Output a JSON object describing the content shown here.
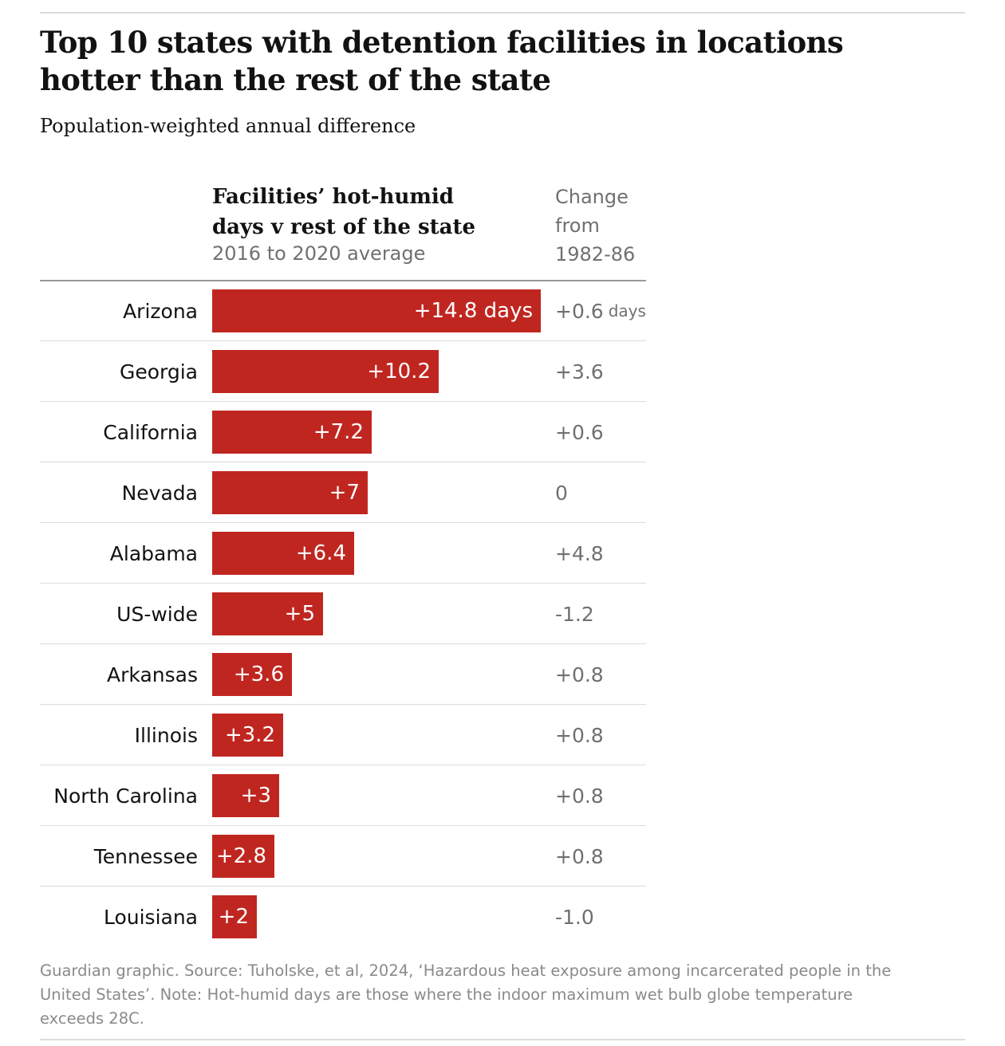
{
  "title": "Top 10 states with detention facilities in locations hotter than the rest of the state",
  "subtitle": "Population-weighted annual difference",
  "column_header": {
    "line1": "Facilities’ hot-humid",
    "line2": "days v rest of the state",
    "sub": "2016 to 2020 average"
  },
  "change_header": {
    "line1": "Change",
    "line2": "from",
    "line3": "1982-86"
  },
  "footer": {
    "line1": "Guardian graphic. Source: Tuholske, et al, 2024, ‘Hazardous heat exposure among incarcerated people in the",
    "line2": "United States’. Note: Hot-humid days are those where the indoor maximum wet bulb globe temperature",
    "line3": "exceeds 28C."
  },
  "colors": {
    "bar": "#c02620",
    "muted_text": "#707070"
  },
  "chart_data": {
    "type": "bar",
    "orientation": "horizontal",
    "title": "Top 10 states with detention facilities in locations hotter than the rest of the state",
    "subtitle": "Population-weighted annual difference",
    "value_label": "Facilities’ hot-humid days v rest of the state",
    "value_sublabel": "2016 to 2020 average",
    "unit": "days",
    "xlim": [
      0,
      14.8
    ],
    "rows": [
      {
        "category": "Arizona",
        "value": 14.8,
        "value_label": "+14.8 days",
        "change": "+0.6",
        "change_unit": "days"
      },
      {
        "category": "Georgia",
        "value": 10.2,
        "value_label": "+10.2",
        "change": "+3.6"
      },
      {
        "category": "California",
        "value": 7.2,
        "value_label": "+7.2",
        "change": "+0.6"
      },
      {
        "category": "Nevada",
        "value": 7,
        "value_label": "+7",
        "change": "0"
      },
      {
        "category": "Alabama",
        "value": 6.4,
        "value_label": "+6.4",
        "change": "+4.8"
      },
      {
        "category": "US-wide",
        "value": 5,
        "value_label": "+5",
        "change": "-1.2"
      },
      {
        "category": "Arkansas",
        "value": 3.6,
        "value_label": "+3.6",
        "change": "+0.8"
      },
      {
        "category": "Illinois",
        "value": 3.2,
        "value_label": "+3.2",
        "change": "+0.8"
      },
      {
        "category": "North Carolina",
        "value": 3,
        "value_label": "+3",
        "change": "+0.8"
      },
      {
        "category": "Tennessee",
        "value": 2.8,
        "value_label": "+2.8",
        "change": "+0.8"
      },
      {
        "category": "Louisiana",
        "value": 2,
        "value_label": "+2",
        "change": "-1.0"
      }
    ]
  }
}
